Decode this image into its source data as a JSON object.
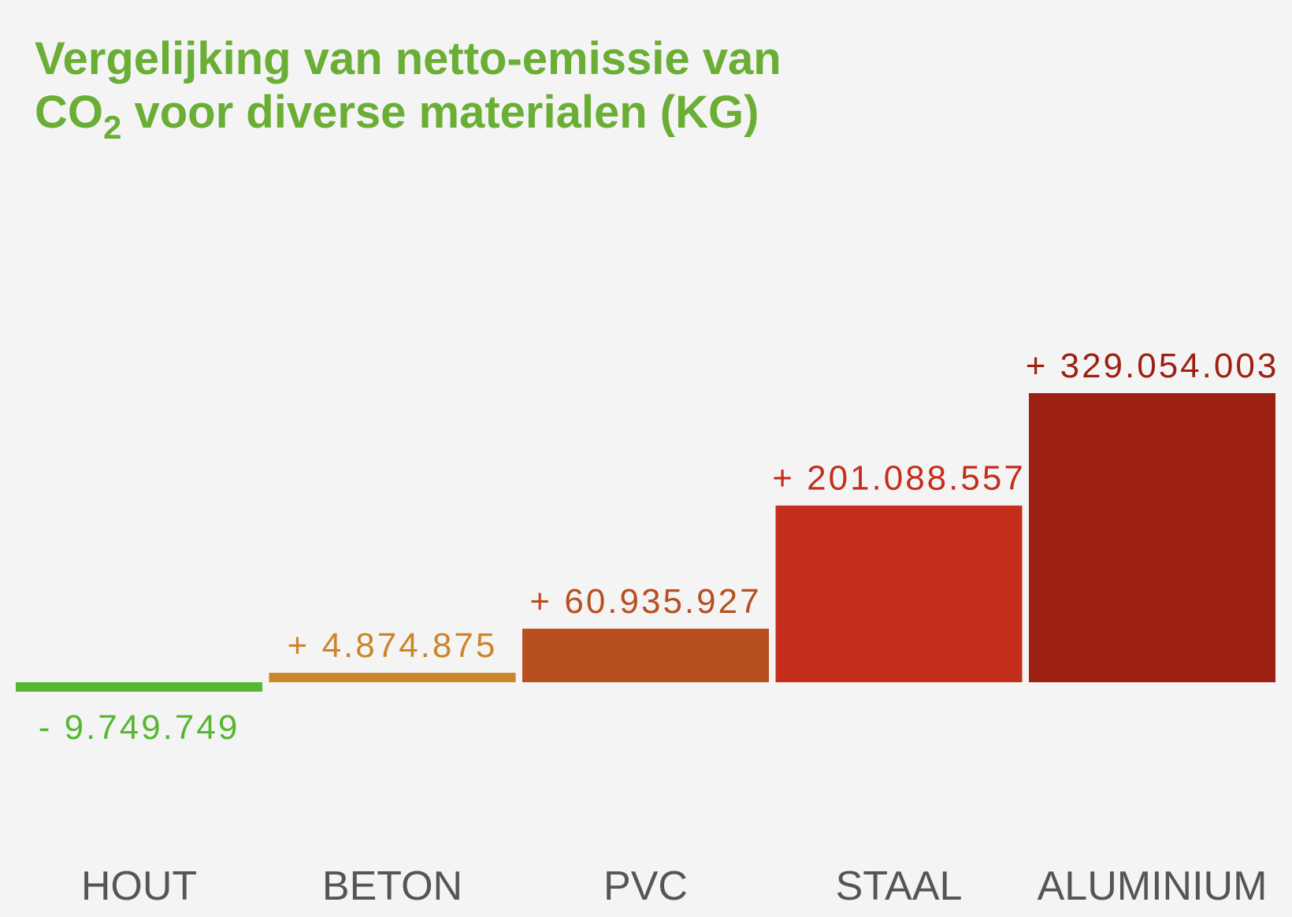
{
  "chart_data": {
    "type": "bar",
    "title_line1": "Vergelijking van netto-emissie van",
    "title_line2_prefix": "CO",
    "title_line2_subscript": "2",
    "title_line2_suffix": " voor diverse materialen (KG)",
    "title_color": "#6aae35",
    "categories": [
      "HOUT",
      "BETON",
      "PVC",
      "STAAL",
      "ALUMINIUM"
    ],
    "values": [
      -9749749,
      4874875,
      60935927,
      201088557,
      329054003
    ],
    "value_labels": [
      "- 9.749.749",
      "+ 4.874.875",
      "+ 60.935.927",
      "+ 201.088.557",
      "+ 329.054.003"
    ],
    "colors": [
      "#56b733",
      "#cd852a",
      "#b84f1f",
      "#c42e1c",
      "#9c2113"
    ],
    "label_colors": [
      "#56b733",
      "#cd852a",
      "#b84f1f",
      "#c42e1c",
      "#9c2113"
    ],
    "category_label_color": "#555555",
    "background": "#f4f4f4",
    "grid": false,
    "legend": "none"
  }
}
